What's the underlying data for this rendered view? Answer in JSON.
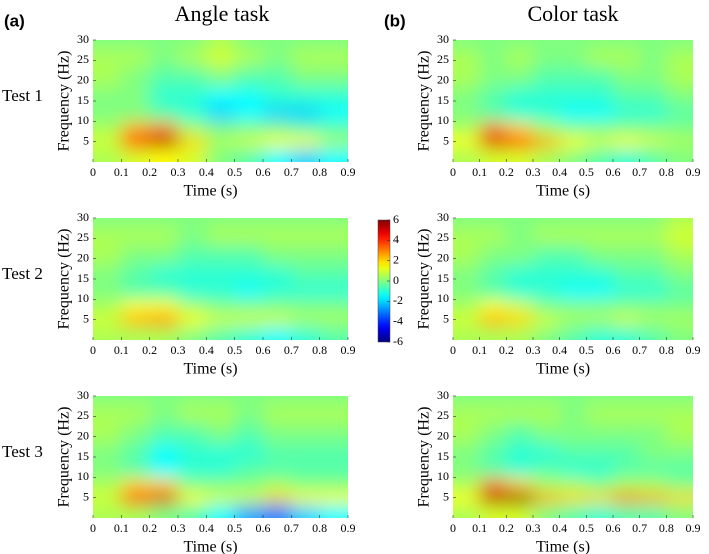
{
  "chart_data": {
    "type": "heatmap",
    "column_titles": [
      "Angle task",
      "Color task"
    ],
    "column_tags": [
      "(a)",
      "(b)"
    ],
    "row_labels": [
      "Test 1",
      "Test 2",
      "Test 3"
    ],
    "x_label": "Time (s)",
    "y_label": "Frequency (Hz)",
    "x": [
      0.05,
      0.15,
      0.25,
      0.35,
      0.45,
      0.55,
      0.65,
      0.75,
      0.85
    ],
    "y": [
      2,
      5,
      8,
      12,
      16,
      21,
      26,
      30
    ],
    "xlim": [
      0,
      0.9
    ],
    "xticks": [
      0,
      0.1,
      0.2,
      0.3,
      0.4,
      0.5,
      0.6,
      0.7,
      0.8,
      0.9
    ],
    "ylim": [
      0,
      30
    ],
    "yticks": [
      5,
      10,
      15,
      20,
      25,
      30
    ],
    "colorbar": {
      "lim": [
        -6,
        6
      ],
      "ticks": [
        6,
        4,
        2,
        0,
        -2,
        -4,
        -6
      ],
      "colormap": "jet"
    },
    "panels": [
      {
        "values": [
          [
            0.5,
            1,
            1.5,
            1,
            0,
            -0.5,
            -1.5,
            -2,
            -1.5
          ],
          [
            1,
            4.5,
            5.5,
            2,
            0.5,
            1,
            1.5,
            1.5,
            0.5
          ],
          [
            0.5,
            2.5,
            3,
            0.5,
            0,
            0,
            0,
            -0.5,
            -0.5
          ],
          [
            0,
            0,
            -0.5,
            -1,
            -2,
            -1.5,
            -2,
            -2,
            -1.5
          ],
          [
            0,
            0,
            -1,
            -1,
            -1.5,
            -1.5,
            -1,
            -1,
            -1
          ],
          [
            0.5,
            0,
            -0.5,
            -0.5,
            0,
            -0.5,
            -0.5,
            0,
            0
          ],
          [
            0.5,
            0.5,
            0,
            0.5,
            1,
            0.5,
            0,
            0.5,
            0.5
          ],
          [
            0,
            0,
            0,
            0,
            0.5,
            0,
            0,
            0,
            0
          ]
        ]
      },
      {
        "values": [
          [
            0.5,
            1,
            1,
            0.5,
            0,
            -0.5,
            -1,
            -0.5,
            0
          ],
          [
            1.5,
            5,
            4.5,
            2.5,
            1.5,
            1,
            1.5,
            1,
            0.5
          ],
          [
            0.5,
            3,
            2,
            0.5,
            0,
            0,
            0,
            0,
            0
          ],
          [
            0,
            -0.5,
            -1,
            -1,
            -1.5,
            -1.5,
            -1,
            -1,
            -0.5
          ],
          [
            0,
            -0.5,
            -1,
            -1,
            -1,
            -1,
            -0.5,
            -0.5,
            0
          ],
          [
            0.5,
            0,
            0,
            -0.5,
            -0.5,
            -0.5,
            0,
            0,
            0.5
          ],
          [
            0.5,
            0,
            0.5,
            0,
            0,
            0.5,
            0.5,
            0,
            0.5
          ],
          [
            0,
            0,
            0,
            0,
            0,
            0,
            0,
            0,
            0
          ]
        ]
      },
      {
        "values": [
          [
            0.5,
            0.5,
            0.5,
            0,
            -0.5,
            -1,
            -1.5,
            -1,
            -0.5
          ],
          [
            1,
            2.5,
            3,
            1.5,
            1,
            1,
            1,
            0.5,
            0.5
          ],
          [
            0.5,
            1.5,
            1.5,
            0.5,
            0,
            0,
            0,
            0,
            0
          ],
          [
            0,
            -0.5,
            -0.5,
            -1,
            -1,
            -1.5,
            -1,
            -1,
            -1
          ],
          [
            0,
            -0.5,
            -1,
            -1,
            -1,
            -1,
            -1,
            -0.5,
            -0.5
          ],
          [
            0.5,
            0,
            0,
            -0.5,
            -0.5,
            -0.5,
            0,
            0,
            0
          ],
          [
            0.5,
            0.5,
            0.5,
            0,
            0.5,
            0.5,
            0.5,
            0.5,
            0.5
          ],
          [
            0,
            0,
            0,
            0,
            0,
            0,
            0,
            0,
            0
          ]
        ]
      },
      {
        "values": [
          [
            0.5,
            0.5,
            0.5,
            0,
            -0.5,
            -1,
            -1,
            -0.5,
            0
          ],
          [
            1,
            2.5,
            2,
            1,
            0.5,
            0.5,
            1,
            0.5,
            0.5
          ],
          [
            0.5,
            1.5,
            1,
            0,
            0,
            0,
            0,
            0,
            0
          ],
          [
            0,
            -0.5,
            -1,
            -1,
            -1.5,
            -1.5,
            -1,
            -1,
            -0.5
          ],
          [
            0,
            -0.5,
            -1,
            -1,
            -1,
            -1,
            -0.5,
            -0.5,
            0
          ],
          [
            0.5,
            0,
            0,
            -0.5,
            -0.5,
            0,
            0,
            0,
            0.5
          ],
          [
            0.5,
            0.5,
            0,
            0.5,
            0.5,
            0.5,
            0.5,
            0.5,
            1
          ],
          [
            0,
            0,
            0,
            0,
            0,
            0,
            0,
            0,
            0.5
          ]
        ]
      },
      {
        "values": [
          [
            0.5,
            0.5,
            0,
            -0.5,
            -1.5,
            -2.5,
            -3,
            -2,
            -1.5
          ],
          [
            1,
            4.5,
            5,
            1.5,
            1,
            1,
            2,
            1.5,
            1.5
          ],
          [
            0.5,
            2,
            2,
            0,
            0,
            0,
            0.5,
            0,
            0
          ],
          [
            0,
            -0.5,
            -1.5,
            -1,
            -1,
            -0.5,
            -0.5,
            -0.5,
            -0.5
          ],
          [
            0,
            -0.5,
            -1.5,
            -1,
            -1,
            -1,
            -0.5,
            -0.5,
            -0.5
          ],
          [
            0.5,
            0,
            -0.5,
            -0.5,
            0,
            -0.5,
            0,
            0,
            0
          ],
          [
            0.5,
            0.5,
            0,
            0.5,
            0.5,
            0,
            0.5,
            0.5,
            0.5
          ],
          [
            0,
            0,
            0,
            0,
            0,
            0,
            0,
            0,
            0
          ]
        ]
      },
      {
        "values": [
          [
            0.5,
            1,
            1,
            0,
            -0.5,
            -1,
            -0.5,
            -0.5,
            0
          ],
          [
            1.5,
            5.5,
            6,
            2.5,
            2,
            2,
            3,
            2.5,
            2
          ],
          [
            0.5,
            3,
            2,
            0.5,
            0.5,
            0,
            0.5,
            0.5,
            0
          ],
          [
            0,
            -0.5,
            -1,
            -0.5,
            -1,
            -1,
            -0.5,
            -0.5,
            -0.5
          ],
          [
            0,
            -0.5,
            -1,
            -1,
            -0.5,
            -0.5,
            -0.5,
            0,
            0
          ],
          [
            0.5,
            0,
            -0.5,
            0,
            0,
            0,
            0,
            0,
            0.5
          ],
          [
            0.5,
            0.5,
            0.5,
            0.5,
            0,
            0.5,
            0.5,
            0.5,
            0.5
          ],
          [
            0,
            0,
            0,
            0,
            0,
            0,
            0,
            0,
            0
          ]
        ]
      }
    ]
  }
}
